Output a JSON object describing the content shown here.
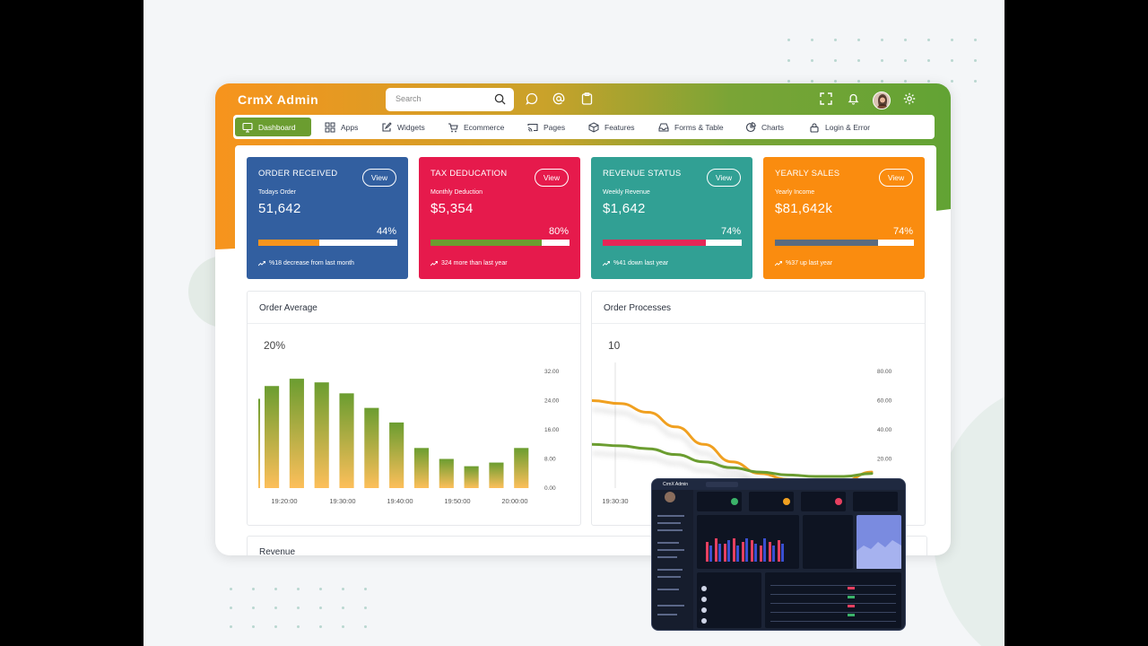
{
  "app": {
    "title": "CrmX Admin"
  },
  "search": {
    "placeholder": "Search"
  },
  "header_icons": [
    "chat-icon",
    "at-icon",
    "clipboard-icon",
    "fullscreen-icon",
    "bell-icon",
    "avatar",
    "gear-icon"
  ],
  "nav": [
    {
      "label": "Dashboard",
      "icon": "monitor-icon",
      "active": true
    },
    {
      "label": "Apps",
      "icon": "grid-icon"
    },
    {
      "label": "Widgets",
      "icon": "edit-icon"
    },
    {
      "label": "Ecommerce",
      "icon": "cart-icon"
    },
    {
      "label": "Pages",
      "icon": "cast-icon"
    },
    {
      "label": "Features",
      "icon": "box-icon"
    },
    {
      "label": "Forms & Table",
      "icon": "inbox-icon"
    },
    {
      "label": "Charts",
      "icon": "pie-icon"
    },
    {
      "label": "Login & Error",
      "icon": "lock-icon"
    }
  ],
  "cards": [
    {
      "title": "ORDER RECEIVED",
      "button": "View",
      "sub": "Todays Order",
      "value": "51,642",
      "percent_label": "44%",
      "progress": 0.44,
      "fill_color": "#f7941d",
      "foot": "%18 decrease from last month",
      "bg": "#325fa0"
    },
    {
      "title": "TAX DEDUCATION",
      "button": "View",
      "sub": "Monthly Deduction",
      "value": "$5,354",
      "percent_label": "80%",
      "progress": 0.8,
      "fill_color": "#6b9d30",
      "foot": "324 more than last year",
      "bg": "#e61a4c"
    },
    {
      "title": "REVENUE STATUS",
      "button": "View",
      "sub": "Weekly Revenue",
      "value": "$1,642",
      "percent_label": "74%",
      "progress": 0.74,
      "fill_color": "#e62757",
      "foot": "%41 down last year",
      "bg": "#31a094"
    },
    {
      "title": "YEARLY SALES",
      "button": "View",
      "sub": "Yearly Income",
      "value": "$81,642k",
      "percent_label": "74%",
      "progress": 0.74,
      "fill_color": "#5a6b80",
      "foot": "%37 up last year",
      "bg": "#fa8c0f"
    }
  ],
  "order_average": {
    "title": "Order Average",
    "big_value": "20%",
    "chart_data": {
      "type": "bar",
      "values": [
        28,
        30,
        29,
        26,
        22,
        18,
        11,
        8,
        6,
        7,
        11
      ],
      "ylim": [
        0,
        32
      ],
      "yticks": [
        "32.00",
        "24.00",
        "16.00",
        "8.00",
        "0.00"
      ],
      "xticks": [
        "19:20:00",
        "19:30:00",
        "19:40:00",
        "19:50:00",
        "20:00:00"
      ],
      "gradient": [
        "#6b9d30",
        "#fdbf5a"
      ]
    }
  },
  "order_processes": {
    "title": "Order Processes",
    "big_value": "10",
    "chart_data": {
      "type": "line",
      "ylim": [
        0,
        80
      ],
      "yticks": [
        "80.00",
        "60.00",
        "40.00",
        "20.00",
        "0.00"
      ],
      "xticks": [
        "19:30:30"
      ],
      "series": [
        {
          "color": "#f0a020",
          "values": [
            60,
            58,
            52,
            42,
            30,
            18,
            10,
            6,
            4,
            5,
            11
          ]
        },
        {
          "color": "#6b9d30",
          "values": [
            30,
            29,
            27,
            23,
            18,
            14,
            11,
            9,
            8,
            8,
            10
          ]
        }
      ]
    }
  },
  "revenue": {
    "title": "Revenue"
  },
  "mini_preview": {
    "title": "CrmX Admin"
  },
  "colors": {
    "brand_orange": "#f7941d",
    "brand_green": "#6b9d30"
  }
}
